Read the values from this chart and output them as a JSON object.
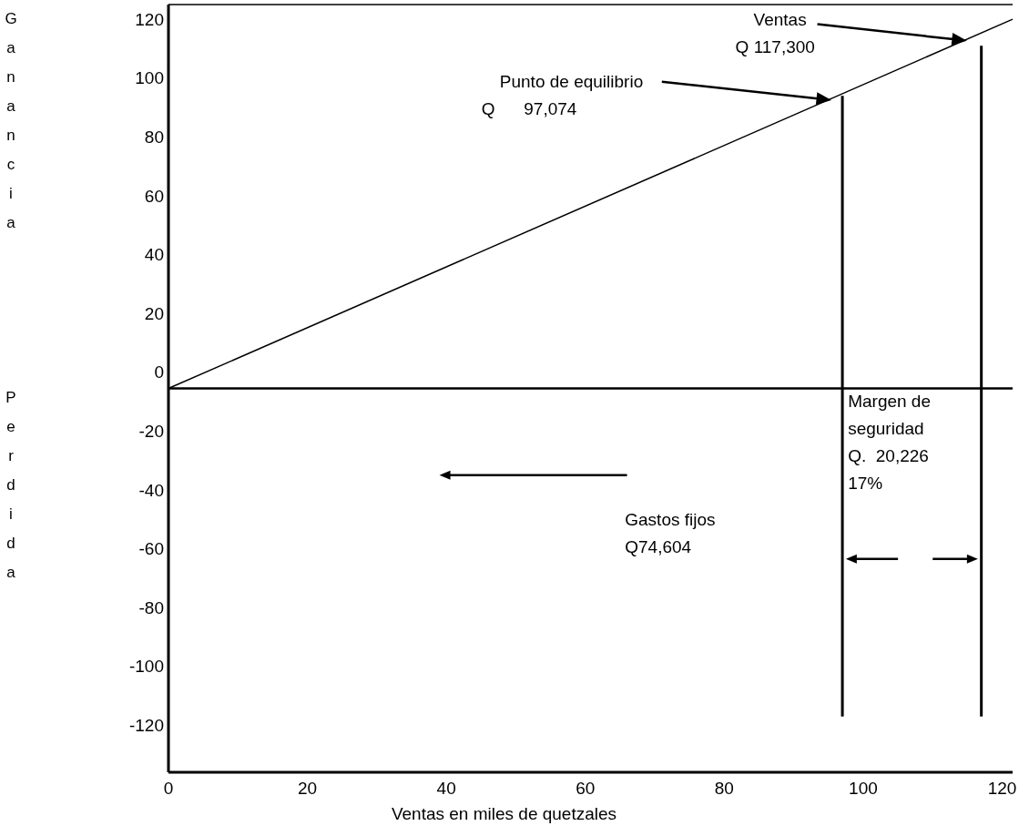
{
  "chart_data": {
    "type": "line",
    "xlabel": "Ventas en miles de quetzales",
    "xlim": [
      0,
      121.5
    ],
    "xticks": [
      0,
      20,
      40,
      60,
      80,
      100,
      120
    ],
    "ylim": [
      -136,
      125
    ],
    "yticks": [
      -120,
      -100,
      -80,
      -60,
      -40,
      -20,
      0,
      20,
      40,
      60,
      80,
      100,
      120
    ],
    "grid": false,
    "line_style": "solid",
    "series": [
      {
        "color": "#000000",
        "x": [
          0,
          121.5
        ],
        "values": [
          -5.5,
          120
        ]
      },
      {
        "color": "#000000",
        "x": [
          97,
          97
        ],
        "values": [
          94,
          -117
        ]
      },
      {
        "color": "#000000",
        "x": [
          117,
          117
        ],
        "values": [
          111,
          -117
        ]
      }
    ],
    "ref_lines": [
      {
        "axis": "y",
        "value": -5.5,
        "label": null,
        "color": "#000000"
      }
    ],
    "annotations": [
      "Ganancia",
      "Perdida",
      "Ventas\nQ 117,300",
      "Punto de equilibrio\nQ      97,074",
      "Margen de\nseguridad\nQ.  20,226\n17%",
      "Gastos fijos\nQ74,604"
    ]
  }
}
